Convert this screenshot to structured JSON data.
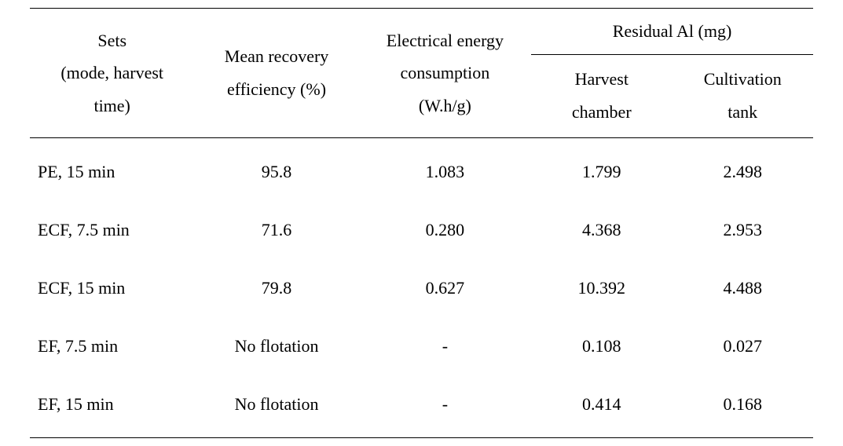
{
  "table": {
    "header": {
      "sets_line1": "Sets",
      "sets_line2": "(mode, harvest",
      "sets_line3": "time)",
      "recovery_line1": "Mean recovery",
      "recovery_line2": "efficiency (%)",
      "energy_line1": "Electrical energy",
      "energy_line2": "consumption",
      "energy_line3": "(W.h/g)",
      "residual_group": "Residual Al (mg)",
      "harvest_line1": "Harvest",
      "harvest_line2": "chamber",
      "cult_line1": "Cultivation",
      "cult_line2": "tank"
    },
    "rows": [
      {
        "set": "PE, 15 min",
        "recovery": "95.8",
        "energy": "1.083",
        "harvest": "1.799",
        "cult": "2.498"
      },
      {
        "set": "ECF, 7.5 min",
        "recovery": "71.6",
        "energy": "0.280",
        "harvest": "4.368",
        "cult": "2.953"
      },
      {
        "set": "ECF, 15 min",
        "recovery": "79.8",
        "energy": "0.627",
        "harvest": "10.392",
        "cult": "4.488"
      },
      {
        "set": "EF, 7.5 min",
        "recovery": "No flotation",
        "energy": "-",
        "harvest": "0.108",
        "cult": "0.027"
      },
      {
        "set": "EF, 15 min",
        "recovery": "No flotation",
        "energy": "-",
        "harvest": "0.414",
        "cult": "0.168"
      }
    ]
  },
  "colors": {
    "text": "#000000",
    "background": "#ffffff",
    "rule": "#000000"
  },
  "typography": {
    "font_family": "Times New Roman",
    "body_fontsize_pt": 16
  }
}
